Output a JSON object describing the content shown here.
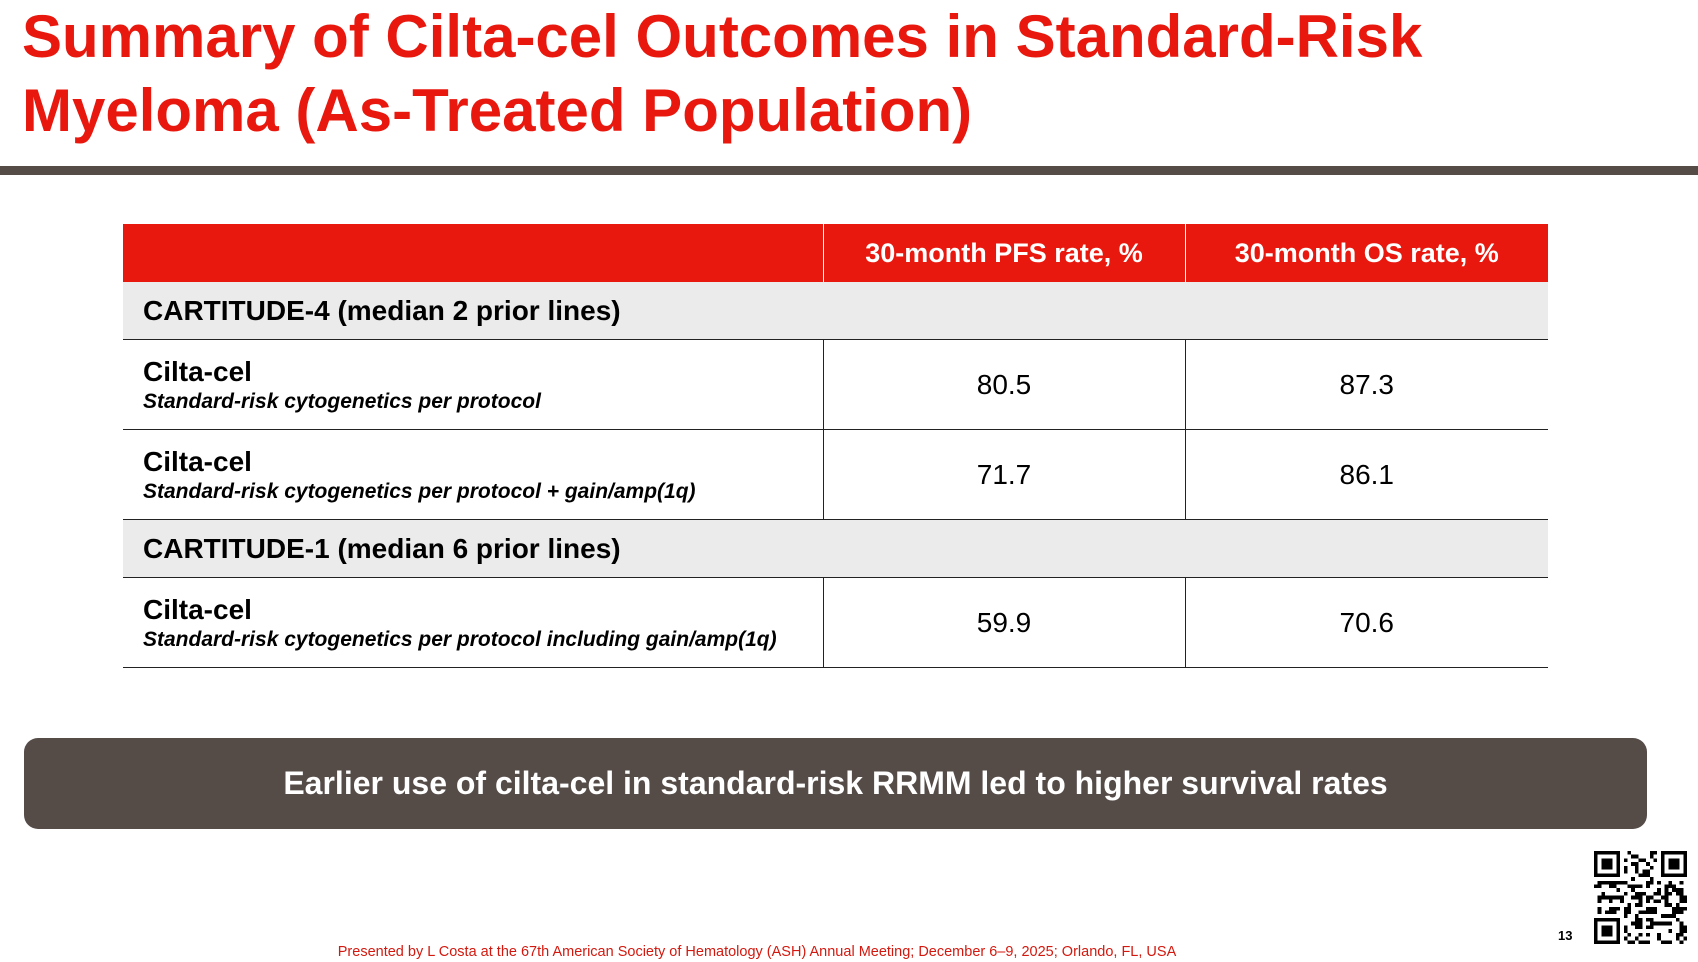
{
  "title": "Summary of Cilta-cel Outcomes in Standard-Risk Myeloma (As-Treated Population)",
  "table": {
    "header": {
      "col1": "",
      "col2": "30-month PFS rate, %",
      "col3": "30-month OS rate, %"
    },
    "sections": [
      {
        "label": "CARTITUDE-4 (median 2 prior lines)",
        "rows": [
          {
            "arm": "Cilta-cel",
            "subgroup": "Standard-risk cytogenetics per protocol",
            "pfs": "80.5",
            "os": "87.3"
          },
          {
            "arm": "Cilta-cel",
            "subgroup": "Standard-risk cytogenetics per protocol + gain/amp(1q)",
            "pfs": "71.7",
            "os": "86.1"
          }
        ]
      },
      {
        "label": "CARTITUDE-1 (median 6 prior lines)",
        "rows": [
          {
            "arm": "Cilta-cel",
            "subgroup": "Standard-risk cytogenetics per protocol including gain/amp(1q)",
            "pfs": "59.9",
            "os": "70.6"
          }
        ]
      }
    ]
  },
  "callout": "Earlier use of cilta-cel in standard-risk RRMM led to higher survival rates",
  "page_number": "13",
  "footer": "Presented by L Costa at the 67th American Society of Hematology (ASH) Annual Meeting; December 6–9, 2025; Orlando, FL, USA",
  "colors": {
    "accent_red": "#e8180e",
    "dark_taupe": "#554c48",
    "section_gray": "#ebebeb"
  },
  "qr_code": "qr-code-icon"
}
